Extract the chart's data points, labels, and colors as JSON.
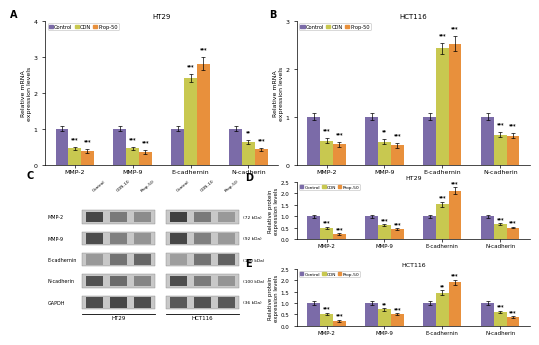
{
  "panel_A": {
    "title": "HT29",
    "ylabel": "Relative mRNA\nexpression levels",
    "ylim": [
      0,
      4
    ],
    "yticks": [
      0,
      1,
      2,
      3,
      4
    ],
    "categories": [
      "MMP-2",
      "MMP-9",
      "E-cadhernin",
      "N-cadherin"
    ],
    "control": [
      1.0,
      1.0,
      1.0,
      1.0
    ],
    "cdn": [
      0.45,
      0.45,
      2.4,
      0.62
    ],
    "prop50": [
      0.38,
      0.35,
      2.8,
      0.42
    ],
    "control_err": [
      0.08,
      0.08,
      0.07,
      0.08
    ],
    "cdn_err": [
      0.05,
      0.05,
      0.12,
      0.06
    ],
    "prop50_err": [
      0.05,
      0.05,
      0.18,
      0.05
    ],
    "stars_cdn": [
      "***",
      "***",
      "***",
      "**"
    ],
    "stars_prop": [
      "***",
      "***",
      "***",
      "***"
    ]
  },
  "panel_B": {
    "title": "HCT116",
    "ylabel": "Relative mRNA\nexpression levels",
    "ylim": [
      0,
      3
    ],
    "yticks": [
      0,
      1,
      2,
      3
    ],
    "categories": [
      "MMP-2",
      "MMP-9",
      "E-cadhernin",
      "N-cadherin"
    ],
    "control": [
      1.0,
      1.0,
      1.0,
      1.0
    ],
    "cdn": [
      0.5,
      0.48,
      2.42,
      0.62
    ],
    "prop50": [
      0.42,
      0.4,
      2.52,
      0.6
    ],
    "control_err": [
      0.07,
      0.08,
      0.07,
      0.07
    ],
    "cdn_err": [
      0.05,
      0.06,
      0.12,
      0.05
    ],
    "prop50_err": [
      0.05,
      0.05,
      0.15,
      0.05
    ],
    "stars_cdn": [
      "***",
      "**",
      "***",
      "***"
    ],
    "stars_prop": [
      "***",
      "***",
      "***",
      "***"
    ]
  },
  "panel_D": {
    "title": "HT29",
    "ylabel": "Relative protein\nexpression levels",
    "ylim": [
      0,
      2.5
    ],
    "yticks": [
      0.0,
      0.5,
      1.0,
      1.5,
      2.0,
      2.5
    ],
    "categories": [
      "MMP-2",
      "MMP-9",
      "E-cadhernin",
      "N-cadherin"
    ],
    "control": [
      1.0,
      1.0,
      1.0,
      1.0
    ],
    "cdn": [
      0.48,
      0.6,
      1.52,
      0.65
    ],
    "prop50": [
      0.22,
      0.42,
      2.12,
      0.5
    ],
    "control_err": [
      0.07,
      0.07,
      0.07,
      0.07
    ],
    "cdn_err": [
      0.05,
      0.05,
      0.1,
      0.05
    ],
    "prop50_err": [
      0.04,
      0.04,
      0.14,
      0.04
    ],
    "stars_cdn": [
      "***",
      "***",
      "***",
      "***"
    ],
    "stars_prop": [
      "***",
      "***",
      "***",
      "***"
    ]
  },
  "panel_E": {
    "title": "HCT116",
    "ylabel": "Relative protein\nexpression levels",
    "ylim": [
      0,
      2.5
    ],
    "yticks": [
      0.0,
      0.5,
      1.0,
      1.5,
      2.0,
      2.5
    ],
    "categories": [
      "MMP-2",
      "MMP-9",
      "E-cadhernin",
      "N-cadherin"
    ],
    "control": [
      1.0,
      1.0,
      1.0,
      1.0
    ],
    "cdn": [
      0.52,
      0.72,
      1.45,
      0.62
    ],
    "prop50": [
      0.22,
      0.5,
      1.9,
      0.38
    ],
    "control_err": [
      0.07,
      0.07,
      0.07,
      0.07
    ],
    "cdn_err": [
      0.05,
      0.05,
      0.1,
      0.05
    ],
    "prop50_err": [
      0.04,
      0.04,
      0.12,
      0.04
    ],
    "stars_cdn": [
      "***",
      "**",
      "**",
      "***"
    ],
    "stars_prop": [
      "***",
      "***",
      "***",
      "***"
    ]
  },
  "colors": {
    "control": "#7B6BA8",
    "cdn": "#C8C850",
    "prop50": "#E8903C"
  },
  "legend_labels": [
    "Control",
    "CDN",
    "Prop-50"
  ],
  "bar_width": 0.22,
  "western_blot": {
    "proteins": [
      "MMP-2",
      "MMP-9",
      "E-cadhernin",
      "N-cadherin",
      "GAPDH"
    ],
    "kdas": [
      "(72 kDa)",
      "(92 kDa)",
      "(110 kDa)",
      "(100 kDa)",
      "(36 kDa)"
    ],
    "lane_labels": [
      "Control",
      "CDN-10",
      "Prop-50"
    ],
    "ht29_intensities": {
      "MMP-2": [
        0.72,
        0.52,
        0.45
      ],
      "MMP-9": [
        0.7,
        0.5,
        0.42
      ],
      "E-cadhernin": [
        0.4,
        0.55,
        0.6
      ],
      "N-cadherin": [
        0.68,
        0.58,
        0.48
      ],
      "GAPDH": [
        0.7,
        0.72,
        0.7
      ]
    },
    "hct116_intensities": {
      "MMP-2": [
        0.75,
        0.52,
        0.4
      ],
      "MMP-9": [
        0.72,
        0.5,
        0.4
      ],
      "E-cadhernin": [
        0.38,
        0.55,
        0.62
      ],
      "N-cadherin": [
        0.7,
        0.52,
        0.42
      ],
      "GAPDH": [
        0.65,
        0.68,
        0.65
      ]
    }
  }
}
